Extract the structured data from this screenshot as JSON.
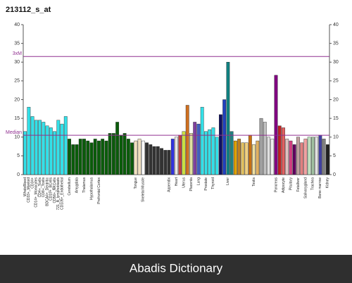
{
  "chart_data": {
    "type": "bar",
    "title": "213112_s_at",
    "footer": "Abadis Dictionary",
    "categories": [
      "WholeBlood",
      "CD33+_Myeloid",
      "CD34+",
      "CD14+_Monocytes",
      "CD4+_Tcells",
      "CD8+_Tcells",
      "BDCA4+_Dentritic",
      "CD19+_BCells",
      "CD56+_NKCells",
      "721_B_lymphoblasts",
      "CD105+_Endothelial",
      null,
      "Cerebellum",
      null,
      "Amygdala",
      null,
      "Thalamus",
      null,
      "Hypothalamus",
      null,
      "Prefrontal Cortex",
      null,
      null,
      null,
      null,
      null,
      null,
      null,
      null,
      null,
      "Tongue",
      null,
      "Skeletal Muscle",
      null,
      null,
      null,
      null,
      null,
      null,
      "Appendix",
      null,
      "Heart",
      null,
      "Uterus",
      null,
      "Placenta",
      null,
      "Lung",
      null,
      "Prostate",
      null,
      "Thyroid",
      null,
      null,
      null,
      "Liver",
      null,
      null,
      null,
      null,
      null,
      null,
      "Testis",
      null,
      null,
      null,
      null,
      null,
      "Pancreas",
      null,
      "Adipocyte",
      null,
      "Pituitary",
      null,
      "Fetalliver",
      null,
      "Salivarygland",
      null,
      "Trachea",
      null,
      "Bone marrow",
      null,
      "Kidney"
    ],
    "values": [
      11.5,
      18,
      15.5,
      14.5,
      14.5,
      14,
      13,
      12.5,
      11.5,
      14.5,
      13.5,
      15.5,
      9.5,
      8,
      8,
      9.5,
      9.5,
      9,
      8.5,
      9.5,
      9,
      9.5,
      9,
      11,
      11,
      14,
      10.5,
      11,
      9.5,
      8.5,
      9,
      9.5,
      9,
      8.5,
      8,
      7.5,
      7.5,
      7,
      6.5,
      6.5,
      9.5,
      10,
      10.5,
      11.5,
      18.5,
      11,
      14,
      13.5,
      18,
      11.5,
      12,
      12.5,
      10,
      16,
      20,
      30,
      11.5,
      9,
      9.5,
      8.5,
      8.5,
      10.5,
      8,
      9,
      15,
      14,
      10,
      9.5,
      26.5,
      13,
      12.5,
      9.5,
      9,
      8,
      10,
      8.5,
      9.5,
      10,
      10,
      10,
      10.5,
      9.5,
      8
    ],
    "colors": [
      "#33e0e8",
      "#33e0e8",
      "#33e0e8",
      "#33e0e8",
      "#33e0e8",
      "#33e0e8",
      "#33e0e8",
      "#33e0e8",
      "#33e0e8",
      "#33e0e8",
      "#33e0e8",
      "#33e0e8",
      "#0a5c0a",
      "#0a5c0a",
      "#0a5c0a",
      "#0a5c0a",
      "#0a5c0a",
      "#0a5c0a",
      "#0a5c0a",
      "#0a5c0a",
      "#0a5c0a",
      "#0a5c0a",
      "#0a5c0a",
      "#0a5c0a",
      "#0a5c0a",
      "#0a5c0a",
      "#0a5c0a",
      "#0a5c0a",
      "#0a5c0a",
      "#0a5c0a",
      "#f0e0c0",
      "#f0e0c0",
      "#ffffff",
      "#333333",
      "#333333",
      "#333333",
      "#333333",
      "#333333",
      "#333333",
      "#333333",
      "#3030e0",
      "#e8e8e8",
      "#c04040",
      "#c8e040",
      "#d07020",
      "#e0e0a0",
      "#8040a0",
      "#4060c0",
      "#33e0e8",
      "#33e0e8",
      "#33e0e8",
      "#33e0e8",
      "#33e0e8",
      "#101060",
      "#2040c0",
      "#108080",
      "#208080",
      "#e0a000",
      "#c08020",
      "#e0c060",
      "#f0d080",
      "#c87010",
      "#f0e0a0",
      "#e0b060",
      "#a0a0a0",
      "#c0c0c0",
      "#e0e0e0",
      "#f0f0f0",
      "#800080",
      "#c02020",
      "#e06060",
      "#e0c0c0",
      "#d04080",
      "#600060",
      "#c0a0a0",
      "#e08080",
      "#f0a0a0",
      "#c0e0c0",
      "#a0c0a0",
      "#e0e0e0",
      "#4040a0",
      "#808080",
      "#202020"
    ],
    "ylim": [
      0,
      40
    ],
    "yticks": [
      0,
      5,
      10,
      15,
      20,
      25,
      30,
      35,
      40
    ],
    "reference_lines": [
      {
        "label": "3xM",
        "value": 31.5,
        "color": "#903090"
      },
      {
        "label": "Median",
        "value": 10.5,
        "color": "#903090"
      }
    ]
  }
}
